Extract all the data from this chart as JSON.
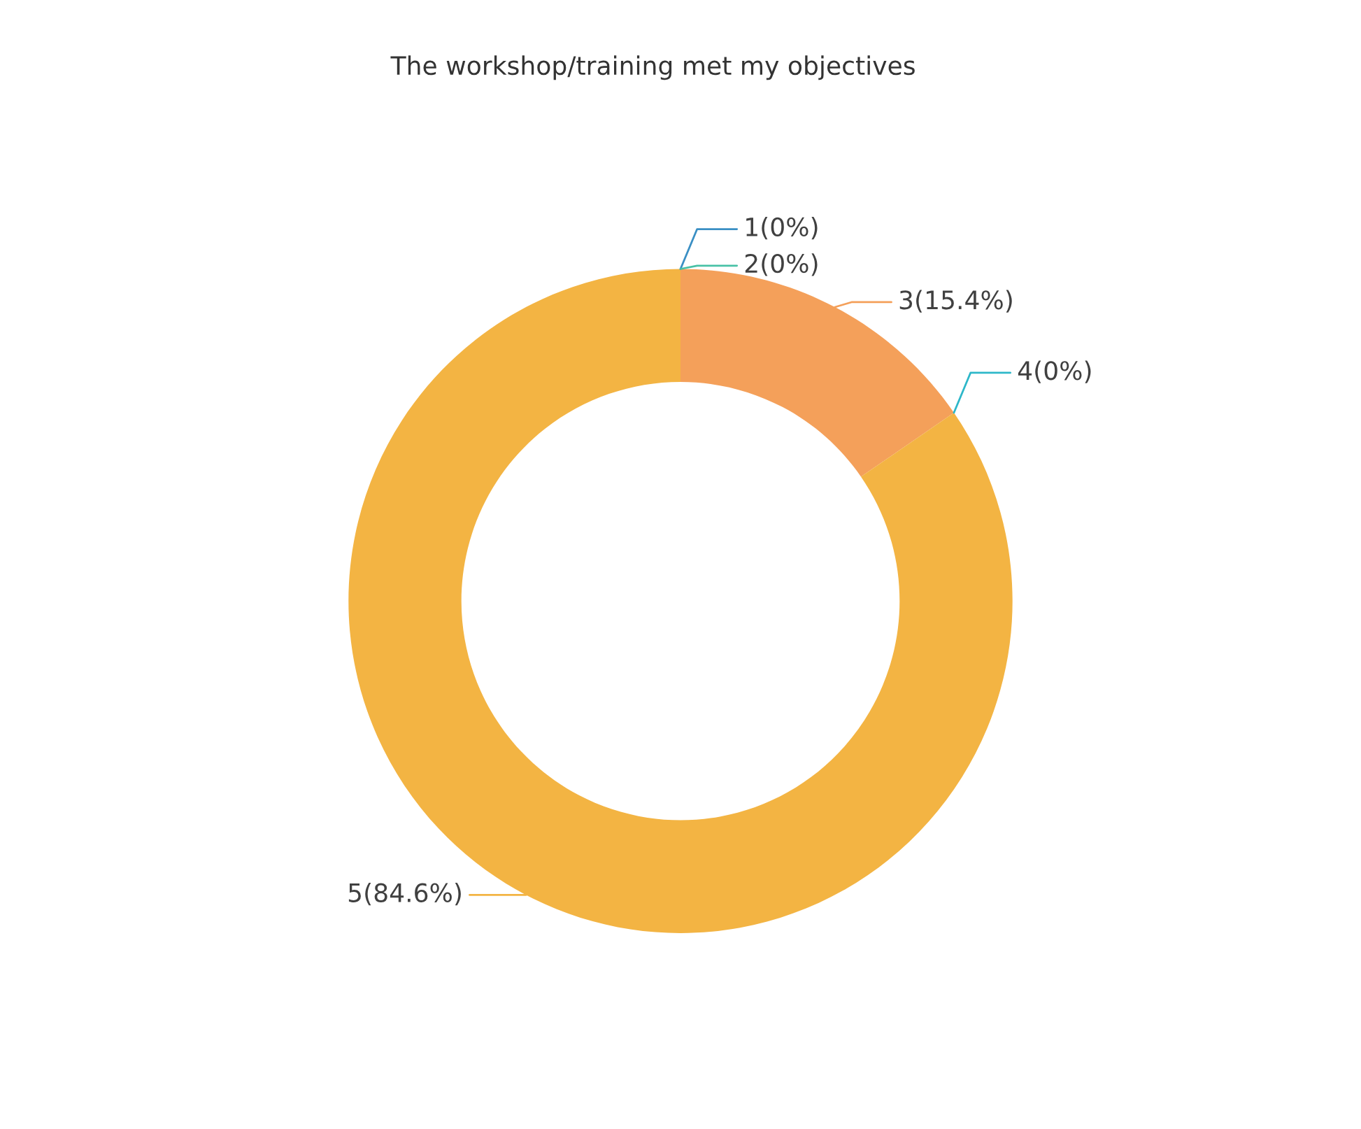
{
  "chart_data": {
    "type": "donut",
    "title": "The workshop/training met my objectives",
    "categories": [
      "1",
      "2",
      "3",
      "4",
      "5"
    ],
    "values": [
      0,
      0,
      15.4,
      0,
      84.6
    ],
    "value_labels": [
      "(0%)",
      "(0%)",
      "(15.4%)",
      "(0%)",
      "(84.6%)"
    ],
    "colors": [
      "#3a8fc4",
      "#48c1a6",
      "#f4a05a",
      "#2db7c9",
      "#f3b443"
    ]
  }
}
